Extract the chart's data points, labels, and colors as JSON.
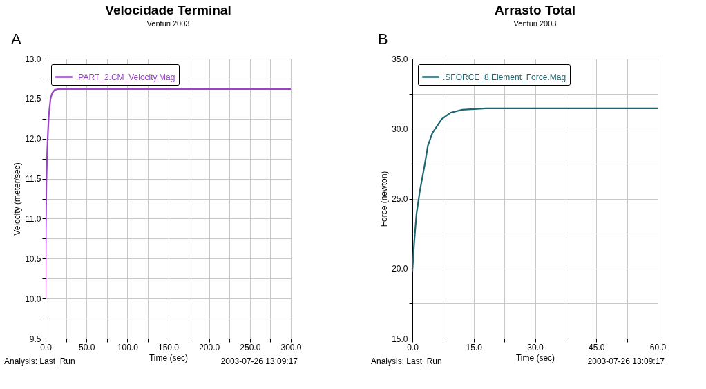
{
  "chart_data": [
    {
      "type": "line",
      "title": "Velocidade Terminal",
      "subtitle": "Venturi 2003",
      "xlabel": "Time (sec)",
      "ylabel": "Velocity (meter/sec)",
      "annotations": [
        "A",
        "Analysis:  Last_Run",
        "2003-07-26 13:09:17"
      ],
      "series": [
        {
          "name": ".PART_2.CM_Velocity.Mag",
          "color": "#9b42c8",
          "x": [
            0,
            0.3,
            1,
            2,
            3,
            4,
            6,
            8,
            11,
            15,
            300
          ],
          "values": [
            10.0,
            10.85,
            11.45,
            11.85,
            12.1,
            12.3,
            12.5,
            12.57,
            12.61,
            12.62,
            12.62
          ]
        }
      ],
      "xlim": [
        0,
        300
      ],
      "ylim": [
        9.5,
        13.0
      ],
      "xticks": [
        {
          "value": 0,
          "label": "0.0"
        },
        {
          "value": 25,
          "label": null
        },
        {
          "value": 50,
          "label": "50.0"
        },
        {
          "value": 75,
          "label": null
        },
        {
          "value": 100,
          "label": "100.0"
        },
        {
          "value": 125,
          "label": null
        },
        {
          "value": 150,
          "label": "150.0"
        },
        {
          "value": 175,
          "label": null
        },
        {
          "value": 200,
          "label": "200.0"
        },
        {
          "value": 225,
          "label": null
        },
        {
          "value": 250,
          "label": "250.0"
        },
        {
          "value": 275,
          "label": null
        },
        {
          "value": 300,
          "label": "300.0"
        }
      ],
      "yticks": [
        9.5,
        {
          "value": 9.75,
          "label": null
        },
        {
          "value": 10,
          "label": "10.0"
        },
        {
          "value": 10.25,
          "label": null
        },
        10.5,
        {
          "value": 10.75,
          "label": null
        },
        {
          "value": 11,
          "label": "11.0"
        },
        {
          "value": 11.25,
          "label": null
        },
        11.5,
        {
          "value": 11.75,
          "label": null
        },
        {
          "value": 12,
          "label": "12.0"
        },
        {
          "value": 12.25,
          "label": null
        },
        12.5,
        {
          "value": 12.75,
          "label": null
        },
        {
          "value": 13,
          "label": "13.0"
        }
      ],
      "grid": true,
      "legend": "top left",
      "line_style": "solid",
      "marker": "none"
    },
    {
      "type": "line",
      "title": "Arrasto Total",
      "subtitle": "Venturi 2003",
      "xlabel": "Time (sec)",
      "ylabel": "Force (newton)",
      "annotations": [
        "B",
        "Analysis:  Last_Run",
        "2003-07-26 13:09:17"
      ],
      "series": [
        {
          "name": ".SFORCE_8.Element_Force.Mag",
          "color": "#1b6670",
          "x": [
            0,
            0.45,
            1.0,
            1.85,
            3.0,
            3.8,
            4.9,
            7.2,
            9.4,
            12.2,
            18,
            60
          ],
          "values": [
            19.8,
            21.9,
            23.9,
            25.6,
            27.4,
            28.8,
            29.7,
            30.7,
            31.15,
            31.35,
            31.45,
            31.45
          ]
        }
      ],
      "xlim": [
        0,
        60
      ],
      "ylim": [
        15,
        35
      ],
      "xticks": [
        {
          "value": 0,
          "label": "0.0"
        },
        {
          "value": 7.5,
          "label": null
        },
        {
          "value": 15,
          "label": "15.0"
        },
        {
          "value": 22.5,
          "label": null
        },
        {
          "value": 30,
          "label": "30.0"
        },
        {
          "value": 37.5,
          "label": null
        },
        {
          "value": 45,
          "label": "45.0"
        },
        {
          "value": 52.5,
          "label": null
        },
        {
          "value": 60,
          "label": "60.0"
        }
      ],
      "yticks": [
        {
          "value": 15,
          "label": "15.0"
        },
        {
          "value": 17.5,
          "label": null
        },
        {
          "value": 20,
          "label": "20.0"
        },
        {
          "value": 22.5,
          "label": null
        },
        {
          "value": 25,
          "label": "25.0"
        },
        {
          "value": 27.5,
          "label": null
        },
        {
          "value": 30,
          "label": "30.0"
        },
        {
          "value": 32.5,
          "label": null
        },
        {
          "value": 35,
          "label": "35.0"
        }
      ],
      "grid": true,
      "legend": "top left",
      "line_style": "solid",
      "marker": "none"
    }
  ]
}
